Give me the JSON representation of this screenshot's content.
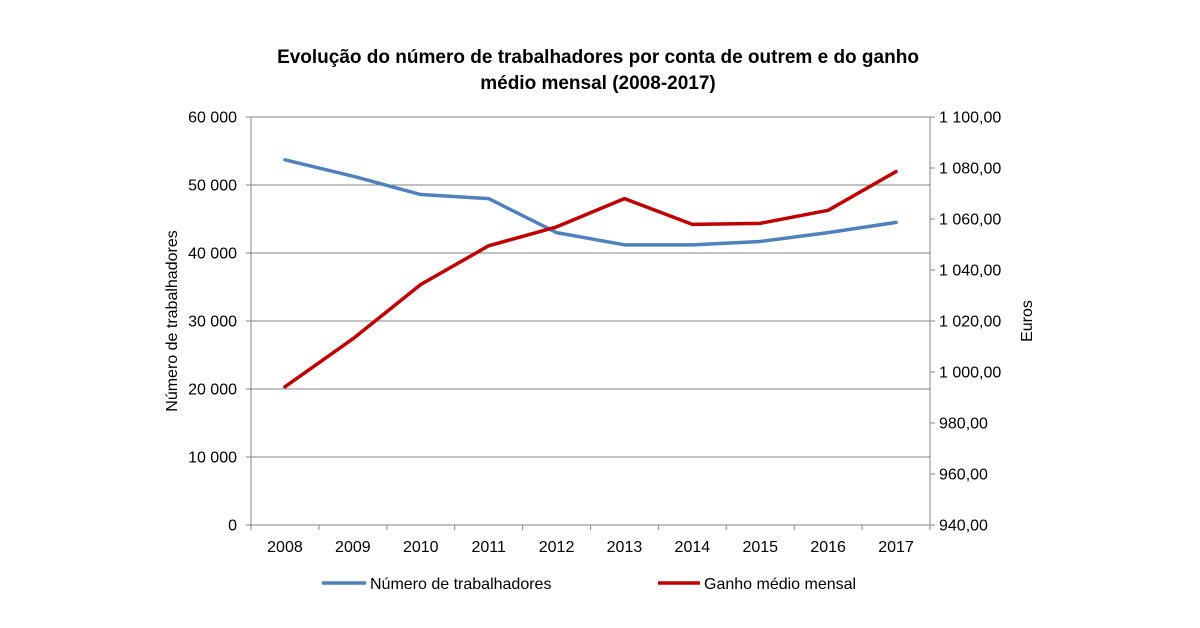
{
  "chart_data": {
    "type": "line",
    "title_line1": "Evolução do número de trabalhadores por conta de outrem e do ganho",
    "title_line2": "médio mensal (2008-2017)",
    "categories": [
      "2008",
      "2009",
      "2010",
      "2011",
      "2012",
      "2013",
      "2014",
      "2015",
      "2016",
      "2017"
    ],
    "y_left": {
      "label": "Número  de trabalhadores",
      "ylim": [
        0,
        60000
      ],
      "ticks": [
        0,
        10000,
        20000,
        30000,
        40000,
        50000,
        60000
      ],
      "tick_labels": [
        "0",
        "10 000",
        "20 000",
        "30 000",
        "40 000",
        "50 000",
        "60 000"
      ]
    },
    "y_right": {
      "label": "Euros",
      "ylim": [
        940,
        1100
      ],
      "ticks": [
        940,
        960,
        980,
        1000,
        1020,
        1040,
        1060,
        1080,
        1100
      ],
      "tick_labels": [
        "940,00",
        "960,00",
        "980,00",
        "1 000,00",
        "1 020,00",
        "1 040,00",
        "1 060,00",
        "1 080,00",
        "1 100,00"
      ]
    },
    "series": [
      {
        "name": "Número de trabalhadores",
        "axis": "left",
        "color": "#4f81bd",
        "values": [
          53700,
          51300,
          48600,
          48000,
          43000,
          41200,
          41200,
          41700,
          43000,
          44500
        ]
      },
      {
        "name": "Ganho médio mensal",
        "axis": "right",
        "color": "#c00000",
        "values": [
          994.2,
          1013.0,
          1034.3,
          1049.5,
          1056.9,
          1068.0,
          1057.9,
          1058.3,
          1063.4,
          1078.6
        ]
      }
    ],
    "grid": "horizontal major",
    "legend_position": "bottom"
  }
}
